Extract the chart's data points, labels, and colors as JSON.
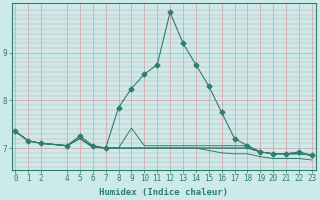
{
  "x_values": [
    0,
    1,
    2,
    4,
    5,
    6,
    7,
    8,
    9,
    10,
    11,
    12,
    13,
    14,
    15,
    16,
    17,
    18,
    19,
    20,
    21,
    22,
    23
  ],
  "series": [
    [
      7.35,
      7.15,
      7.1,
      7.05,
      7.2,
      7.02,
      7.0,
      7.0,
      7.0,
      7.0,
      7.0,
      7.0,
      7.0,
      7.0,
      7.0,
      7.0,
      7.0,
      7.0,
      6.92,
      6.88,
      6.88,
      6.88,
      6.85
    ],
    [
      7.35,
      7.15,
      7.1,
      7.05,
      7.2,
      7.02,
      7.0,
      7.0,
      7.0,
      7.0,
      7.0,
      7.0,
      7.0,
      7.0,
      7.0,
      7.0,
      7.0,
      7.0,
      6.92,
      6.88,
      6.88,
      6.88,
      6.85
    ],
    [
      7.35,
      7.15,
      7.1,
      7.05,
      7.25,
      7.05,
      7.0,
      7.0,
      7.42,
      7.05,
      7.05,
      7.05,
      7.05,
      7.05,
      7.05,
      7.05,
      7.05,
      7.05,
      6.92,
      6.88,
      6.88,
      6.88,
      6.85
    ],
    [
      7.35,
      7.15,
      7.1,
      7.05,
      7.25,
      7.05,
      7.0,
      7.85,
      8.25,
      8.55,
      8.75,
      9.85,
      9.2,
      8.75,
      8.3,
      7.75,
      7.2,
      7.05,
      6.92,
      6.88,
      6.88,
      6.92,
      6.85
    ],
    [
      7.35,
      7.15,
      7.1,
      7.05,
      7.2,
      7.02,
      7.0,
      7.0,
      7.0,
      7.0,
      7.0,
      7.0,
      7.0,
      7.0,
      6.95,
      6.9,
      6.88,
      6.88,
      6.82,
      6.78,
      6.78,
      6.78,
      6.75
    ]
  ],
  "series_markers": [
    false,
    false,
    false,
    true,
    false
  ],
  "line_color": "#2e7d6e",
  "marker": "D",
  "marker_size": 2.5,
  "background_color": "#cdeaea",
  "grid_color_v": "#d4a0a0",
  "grid_color_h": "#d4a0a0",
  "xlabel": "Humidex (Indice chaleur)",
  "ylim": [
    6.55,
    10.05
  ],
  "yticks": [
    7,
    8,
    9
  ],
  "xlim": [
    -0.3,
    23.3
  ],
  "xtick_positions": [
    0,
    1,
    2,
    4,
    5,
    6,
    7,
    8,
    9,
    10,
    11,
    12,
    13,
    14,
    15,
    16,
    17,
    18,
    19,
    20,
    21,
    22,
    23
  ],
  "xtick_labels": [
    "0",
    "1",
    "2",
    "4",
    "5",
    "6",
    "7",
    "8",
    "9",
    "10",
    "11",
    "12",
    "13",
    "14",
    "15",
    "16",
    "17",
    "18",
    "19",
    "20",
    "21",
    "22",
    "23"
  ],
  "tick_fontsize": 5.5,
  "xlabel_fontsize": 6.5
}
